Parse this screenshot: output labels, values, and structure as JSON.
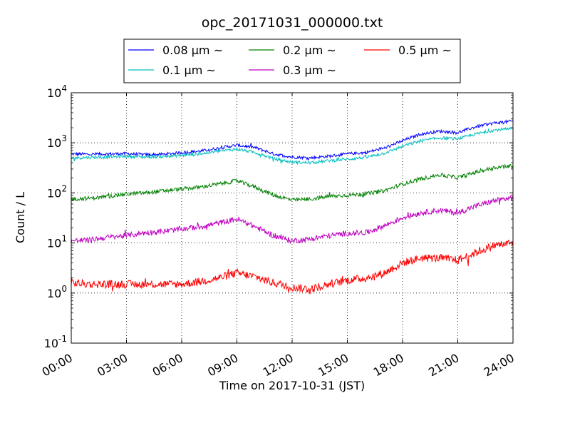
{
  "chart_data": {
    "type": "line",
    "title": "opc_20171031_000000.txt",
    "xlabel": "Time on 2017-10-31 (JST)",
    "ylabel": "Count / L",
    "yscale": "log",
    "ylim": [
      0.1,
      10000
    ],
    "xlim_hours": [
      0,
      24
    ],
    "grid": true,
    "legend_position": "top-center",
    "x_ticks": [
      0,
      3,
      6,
      9,
      12,
      15,
      18,
      21,
      24
    ],
    "x_tick_labels": [
      "00:00",
      "03:00",
      "06:00",
      "09:00",
      "12:00",
      "15:00",
      "18:00",
      "21:00",
      "24:00"
    ],
    "y_ticks": [
      0.1,
      1,
      10,
      100,
      1000,
      10000
    ],
    "y_tick_labels": [
      {
        "base": "10",
        "exp": "-1"
      },
      {
        "base": "10",
        "exp": "0"
      },
      {
        "base": "10",
        "exp": "1"
      },
      {
        "base": "10",
        "exp": "2"
      },
      {
        "base": "10",
        "exp": "3"
      },
      {
        "base": "10",
        "exp": "4"
      }
    ],
    "x_hours": [
      0,
      1,
      2,
      3,
      4,
      5,
      6,
      7,
      8,
      9,
      10,
      11,
      12,
      13,
      14,
      15,
      16,
      17,
      18,
      19,
      20,
      21,
      22,
      23,
      24
    ],
    "series": [
      {
        "name": "0.08 μm ~",
        "color": "#0000ff",
        "values": [
          600,
          590,
          600,
          610,
          580,
          590,
          640,
          680,
          780,
          900,
          800,
          600,
          520,
          500,
          540,
          600,
          640,
          780,
          1100,
          1500,
          1700,
          1600,
          2100,
          2500,
          2700
        ]
      },
      {
        "name": "0.1 μm ~",
        "color": "#00bfbf",
        "values": [
          500,
          510,
          520,
          540,
          520,
          530,
          560,
          600,
          680,
          750,
          640,
          480,
          410,
          400,
          440,
          470,
          510,
          620,
          850,
          1100,
          1250,
          1200,
          1500,
          1800,
          1900
        ]
      },
      {
        "name": "0.2 μm ~",
        "color": "#008000",
        "values": [
          75,
          78,
          85,
          95,
          100,
          110,
          120,
          130,
          150,
          175,
          130,
          90,
          72,
          75,
          85,
          90,
          95,
          110,
          150,
          190,
          230,
          200,
          260,
          320,
          350
        ]
      },
      {
        "name": "0.3 μm ~",
        "color": "#bf00bf",
        "values": [
          11,
          11.5,
          13,
          14,
          16,
          17,
          19,
          21,
          25,
          30,
          21,
          14,
          11,
          12,
          14,
          15.5,
          16,
          22,
          32,
          40,
          45,
          40,
          55,
          70,
          80
        ]
      },
      {
        "name": "0.5 μm ~",
        "color": "#ff0000",
        "values": [
          1.6,
          1.5,
          1.5,
          1.5,
          1.5,
          1.5,
          1.5,
          1.7,
          2.0,
          2.5,
          2.1,
          1.6,
          1.3,
          1.2,
          1.5,
          1.8,
          2.0,
          2.5,
          4.0,
          5.0,
          5.0,
          4.5,
          6.5,
          9.0,
          10.0
        ]
      }
    ]
  }
}
